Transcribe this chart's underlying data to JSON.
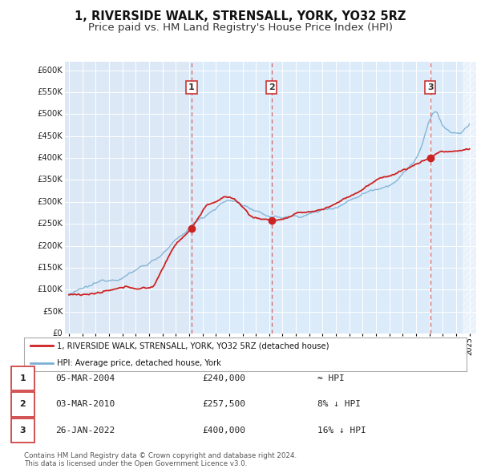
{
  "title": "1, RIVERSIDE WALK, STRENSALL, YORK, YO32 5RZ",
  "subtitle": "Price paid vs. HM Land Registry's House Price Index (HPI)",
  "ylim": [
    0,
    620000
  ],
  "yticks": [
    0,
    50000,
    100000,
    150000,
    200000,
    250000,
    300000,
    350000,
    400000,
    450000,
    500000,
    550000,
    600000
  ],
  "ytick_labels": [
    "£0",
    "£50K",
    "£100K",
    "£150K",
    "£200K",
    "£250K",
    "£300K",
    "£350K",
    "£400K",
    "£450K",
    "£500K",
    "£550K",
    "£600K"
  ],
  "xlim_start": 1994.7,
  "xlim_end": 2025.5,
  "hpi_color": "#7bafd4",
  "price_color": "#cc2222",
  "bg_color": "#dce8f5",
  "highlight_bg": "#e8f2fc",
  "grid_color": "#ffffff",
  "legend_label_price": "1, RIVERSIDE WALK, STRENSALL, YORK, YO32 5RZ (detached house)",
  "legend_label_hpi": "HPI: Average price, detached house, York",
  "sale_dates": [
    2004.18,
    2010.18,
    2022.07
  ],
  "sale_prices": [
    240000,
    257500,
    400000
  ],
  "sale_labels": [
    "1",
    "2",
    "3"
  ],
  "vline_color": "#cc4444",
  "sale_dot_color": "#cc2222",
  "table_rows": [
    {
      "num": "1",
      "date": "05-MAR-2004",
      "price": "£240,000",
      "relation": "≈ HPI"
    },
    {
      "num": "2",
      "date": "03-MAR-2010",
      "price": "£257,500",
      "relation": "8% ↓ HPI"
    },
    {
      "num": "3",
      "date": "26-JAN-2022",
      "price": "£400,000",
      "relation": "16% ↓ HPI"
    }
  ],
  "footer": "Contains HM Land Registry data © Crown copyright and database right 2024.\nThis data is licensed under the Open Government Licence v3.0.",
  "title_fontsize": 10.5,
  "subtitle_fontsize": 9.5
}
